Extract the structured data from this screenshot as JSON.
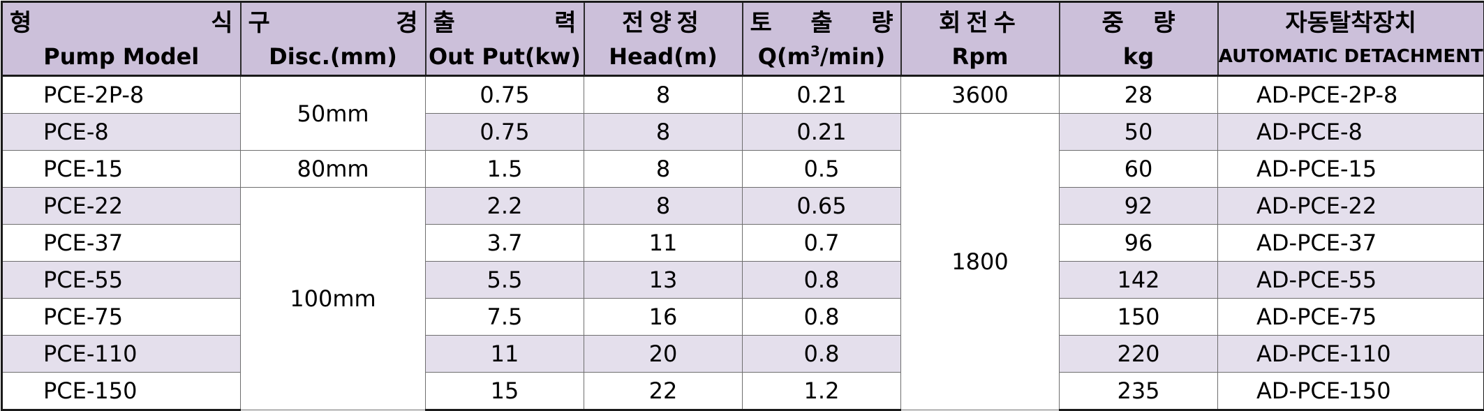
{
  "headers_kr": [
    "형 식",
    "구 경",
    "출 력",
    "전양정",
    "토 출 량",
    "회전수",
    "중 량",
    "자동탈착장치"
  ],
  "headers_en": {
    "model": "Pump Model",
    "disc": "Disc.(mm)",
    "output": "Out Put(kw)",
    "head": "Head(m)",
    "flow_prefix": "Q(m",
    "flow_sup": "3",
    "flow_suffix": "/min)",
    "rpm": "Rpm",
    "weight": "kg",
    "auto": "AUTOMATIC DETACHMENT"
  },
  "disc_groups": [
    "50mm",
    "80mm",
    "100mm"
  ],
  "rpm_groups": [
    "3600",
    "1800"
  ],
  "rows": [
    {
      "model": "PCE-2P-8",
      "output": "0.75",
      "head": "8",
      "flow": "0.21",
      "weight": "28",
      "auto": "AD-PCE-2P-8"
    },
    {
      "model": "PCE-8",
      "output": "0.75",
      "head": "8",
      "flow": "0.21",
      "weight": "50",
      "auto": "AD-PCE-8"
    },
    {
      "model": "PCE-15",
      "output": "1.5",
      "head": "8",
      "flow": "0.5",
      "weight": "60",
      "auto": "AD-PCE-15"
    },
    {
      "model": "PCE-22",
      "output": "2.2",
      "head": "8",
      "flow": "0.65",
      "weight": "92",
      "auto": "AD-PCE-22"
    },
    {
      "model": "PCE-37",
      "output": "3.7",
      "head": "11",
      "flow": "0.7",
      "weight": "96",
      "auto": "AD-PCE-37"
    },
    {
      "model": "PCE-55",
      "output": "5.5",
      "head": "13",
      "flow": "0.8",
      "weight": "142",
      "auto": "AD-PCE-55"
    },
    {
      "model": "PCE-75",
      "output": "7.5",
      "head": "16",
      "flow": "0.8",
      "weight": "150",
      "auto": "AD-PCE-75"
    },
    {
      "model": "PCE-110",
      "output": "11",
      "head": "20",
      "flow": "0.8",
      "weight": "220",
      "auto": "AD-PCE-110"
    },
    {
      "model": "PCE-150",
      "output": "15",
      "head": "22",
      "flow": "1.2",
      "weight": "235",
      "auto": "AD-PCE-150"
    }
  ]
}
